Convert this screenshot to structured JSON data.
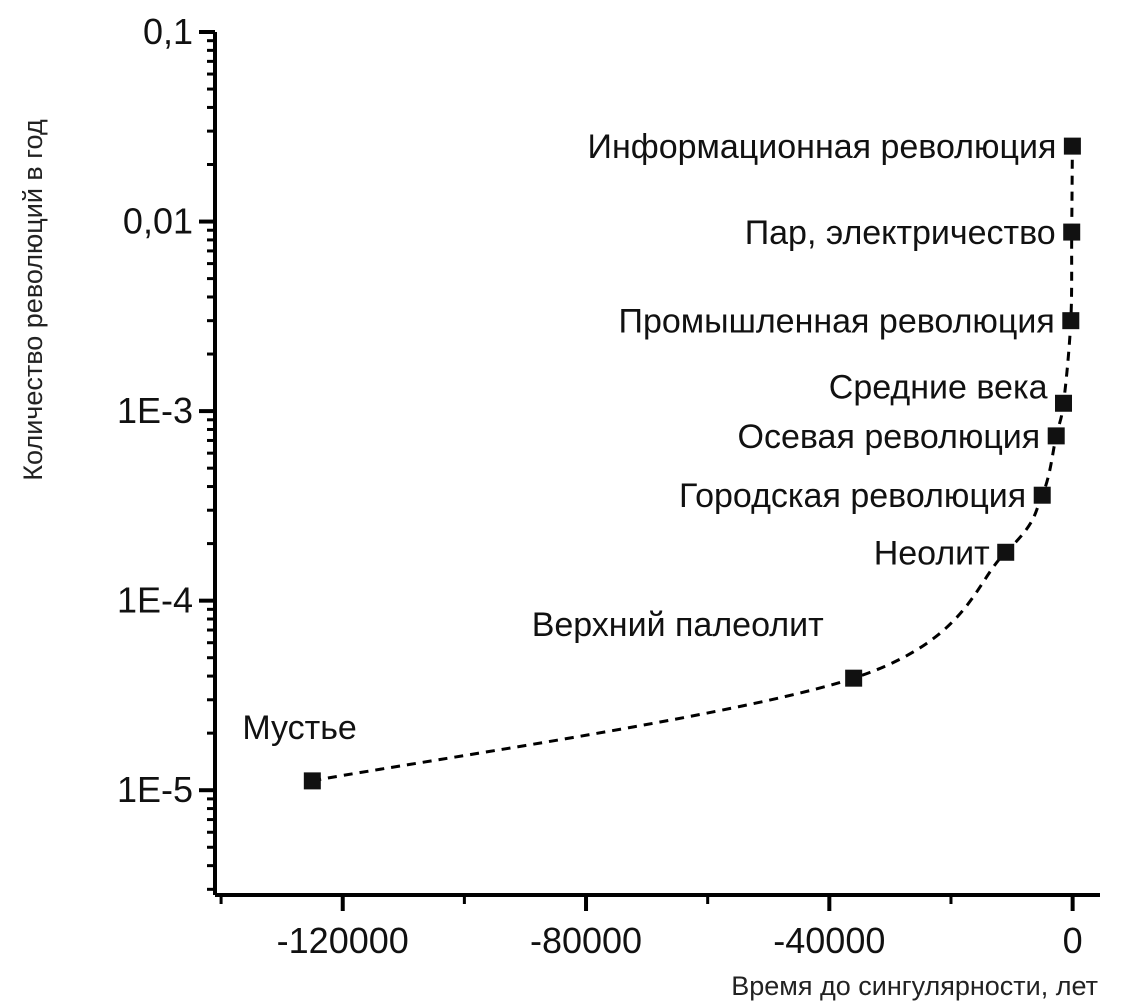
{
  "chart_data": {
    "type": "scatter",
    "title": "",
    "xlabel": "Время до сингулярности, лет",
    "ylabel": "Количество революций в год",
    "x_scale": "linear",
    "y_scale": "log",
    "xlim": [
      -141000,
      4500
    ],
    "ylim": [
      2.8e-06,
      0.1
    ],
    "x_ticks": [
      {
        "value": -120000,
        "label": "-120000"
      },
      {
        "value": -80000,
        "label": "-80000"
      },
      {
        "value": -40000,
        "label": "-40000"
      },
      {
        "value": 0,
        "label": "0"
      }
    ],
    "y_ticks": [
      {
        "value": 0.1,
        "label": "0,1"
      },
      {
        "value": 0.01,
        "label": "0,01"
      },
      {
        "value": 0.001,
        "label": "1E-3"
      },
      {
        "value": 0.0001,
        "label": "1E-4"
      },
      {
        "value": 1e-05,
        "label": "1E-5"
      }
    ],
    "grid": false,
    "trend_line": "dashed",
    "points": [
      {
        "label": "Мустье",
        "x": -125000,
        "y": 1.12e-05
      },
      {
        "label": "Верхний палеолит",
        "x": -36000,
        "y": 3.9e-05
      },
      {
        "label": "Неолит",
        "x": -11000,
        "y": 0.00018
      },
      {
        "label": "Городская революция",
        "x": -5000,
        "y": 0.00036
      },
      {
        "label": "Осевая революция",
        "x": -2700,
        "y": 0.00074
      },
      {
        "label": "Средние века",
        "x": -1500,
        "y": 0.0011
      },
      {
        "label": "Промышленная революция",
        "x": -300,
        "y": 0.003
      },
      {
        "label": "Пар, электричество",
        "x": -150,
        "y": 0.0088
      },
      {
        "label": "Информационная революция",
        "x": -40,
        "y": 0.025
      }
    ]
  }
}
